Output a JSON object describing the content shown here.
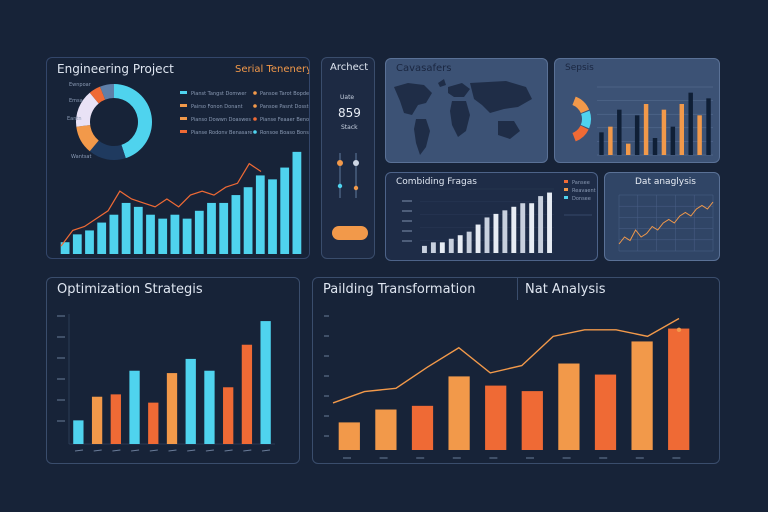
{
  "colors": {
    "cyan": "#4fd3ee",
    "orange": "#f2994a",
    "orangeRed": "#ef6a35",
    "navy": "#1f3a5f",
    "slate": "#5f7fa8",
    "pale": "#e9e2f6",
    "grid": "#2b3b57"
  },
  "panels": {
    "engineering": {
      "title": "Engineering Project",
      "title_right": "Serial Tenenery",
      "legend_left": [
        "Pianst Tangst Domwer",
        "Pairso Fonon Donant",
        "Pianso Dowwn Doaswes",
        "Pianse Rodonv Benasare"
      ],
      "legend_right": [
        "Pansoe Tarot Bopdee",
        "Pansoe Pasnt Dosstee",
        "Pianse Feaaer Benosee",
        "Ronsoe Boaso Bonshee"
      ],
      "donut_labels": [
        "Ewnpoar",
        "Emsa",
        "Eantn",
        "Wantsat"
      ]
    },
    "architect": {
      "title": "Archect",
      "value_top": "Uate",
      "value_main": "859",
      "value_bottom": "Stack"
    },
    "cavesfers": {
      "title": "Cavasafers"
    },
    "sepsis": {
      "title": "Sepsis"
    },
    "combining": {
      "title": "Combiding Fragas",
      "legend": [
        "Pansee",
        "Reavaent",
        "Donsee"
      ]
    },
    "dataanalysis": {
      "title": "Dat anaglysis"
    },
    "optimization": {
      "title": "Optimization Strategis"
    },
    "building": {
      "title": "Pailding Transformation",
      "title2": "Nat Analysis"
    }
  },
  "chart_data": [
    {
      "id": "engineering-bars",
      "type": "bar",
      "values": [
        3,
        5,
        6,
        8,
        10,
        13,
        12,
        10,
        9,
        10,
        9,
        11,
        13,
        13,
        15,
        17,
        20,
        19,
        22,
        26
      ],
      "line": [
        2,
        6,
        7,
        9,
        11,
        16,
        14,
        13,
        12,
        14,
        12,
        15,
        16,
        15,
        17,
        18,
        23,
        21
      ]
    },
    {
      "id": "engineering-donut",
      "type": "pie",
      "values": [
        45,
        16,
        12,
        16,
        5,
        6
      ],
      "colors": [
        "#4fd3ee",
        "#1f3a5f",
        "#f2994a",
        "#e9e2f6",
        "#ef6a35",
        "#5f7fa8"
      ]
    },
    {
      "id": "sepsis-bars",
      "type": "bar",
      "values": [
        4,
        5,
        8,
        2,
        7,
        9,
        3,
        8,
        5,
        9,
        11,
        7,
        10
      ],
      "colors": [
        "#0f1f36",
        "#f2994a",
        "#0f1f36",
        "#f2994a",
        "#0f1f36",
        "#f2994a",
        "#0f1f36",
        "#f2994a",
        "#0f1f36",
        "#f2994a",
        "#0f1f36",
        "#f2994a",
        "#0f1f36"
      ]
    },
    {
      "id": "combining-bars",
      "type": "bar",
      "values": [
        2,
        3,
        3,
        4,
        5,
        6,
        8,
        10,
        11,
        12,
        13,
        14,
        14,
        16,
        17
      ],
      "colors": [
        "#c8d0de",
        "#c8d0de",
        "#e7ecf4",
        "#c8d0de",
        "#e7ecf4",
        "#c8d0de",
        "#e7ecf4",
        "#c8d0de",
        "#e7ecf4",
        "#c8d0de",
        "#e7ecf4",
        "#c8d0de",
        "#e7ecf4",
        "#c8d0de",
        "#e7ecf4"
      ]
    },
    {
      "id": "dataanalysis-line",
      "type": "line",
      "values": [
        2,
        4,
        3,
        6,
        4,
        5,
        7,
        6,
        8,
        9,
        8,
        10,
        11,
        10,
        12,
        13,
        12,
        14
      ]
    },
    {
      "id": "optimization-bars",
      "type": "bar",
      "values": [
        20,
        40,
        42,
        62,
        35,
        60,
        72,
        62,
        48,
        84,
        104
      ],
      "colors": [
        "#4fd3ee",
        "#f2994a",
        "#ef6a35",
        "#4fd3ee",
        "#ef6a35",
        "#f2994a",
        "#4fd3ee",
        "#4fd3ee",
        "#ef6a35",
        "#ef6a35",
        "#4fd3ee"
      ]
    },
    {
      "id": "building-bars",
      "type": "bar",
      "values": [
        30,
        44,
        48,
        80,
        70,
        64,
        94,
        82,
        118,
        132
      ],
      "line": [
        58,
        72,
        76,
        102,
        126,
        95,
        104,
        140,
        148,
        148,
        140,
        162
      ],
      "colors": [
        "#f2994a",
        "#f2994a",
        "#ef6a35",
        "#f2994a",
        "#ef6a35",
        "#ef6a35",
        "#f2994a",
        "#ef6a35",
        "#f2994a",
        "#ef6a35"
      ]
    }
  ]
}
